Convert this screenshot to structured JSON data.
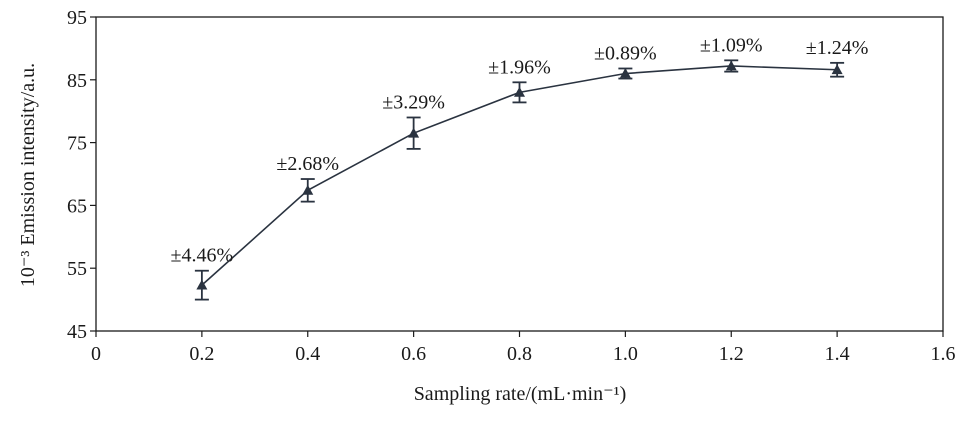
{
  "chart_data": {
    "type": "line",
    "title": "",
    "xlabel": "Sampling rate/(mL·min⁻¹)",
    "ylabel": "10⁻³ Emission intensity/a.u.",
    "xlim": [
      0,
      1.6
    ],
    "ylim": [
      45,
      95
    ],
    "x_ticks": [
      "0",
      "0.2",
      "0.4",
      "0.6",
      "0.8",
      "1.0",
      "1.2",
      "1.4",
      "1.6"
    ],
    "x_tick_values": [
      0,
      0.2,
      0.4,
      0.6,
      0.8,
      1.0,
      1.2,
      1.4,
      1.6
    ],
    "y_ticks": [
      "45",
      "55",
      "65",
      "75",
      "85",
      "95"
    ],
    "y_tick_values": [
      45,
      55,
      65,
      75,
      85,
      95
    ],
    "grid": false,
    "series": [
      {
        "name": "Emission intensity",
        "marker": "triangle",
        "color": "#2a3340",
        "x": [
          0.2,
          0.4,
          0.6,
          0.8,
          1.0,
          1.2,
          1.4
        ],
        "y": [
          52.3,
          67.4,
          76.5,
          83.0,
          86.0,
          87.2,
          86.6
        ],
        "err": [
          2.3,
          1.8,
          2.5,
          1.6,
          0.8,
          0.9,
          1.1
        ],
        "labels": [
          "±4.46%",
          "±2.68%",
          "±3.29%",
          "±1.96%",
          "±0.89%",
          "±1.09%",
          "±1.24%"
        ]
      }
    ]
  }
}
